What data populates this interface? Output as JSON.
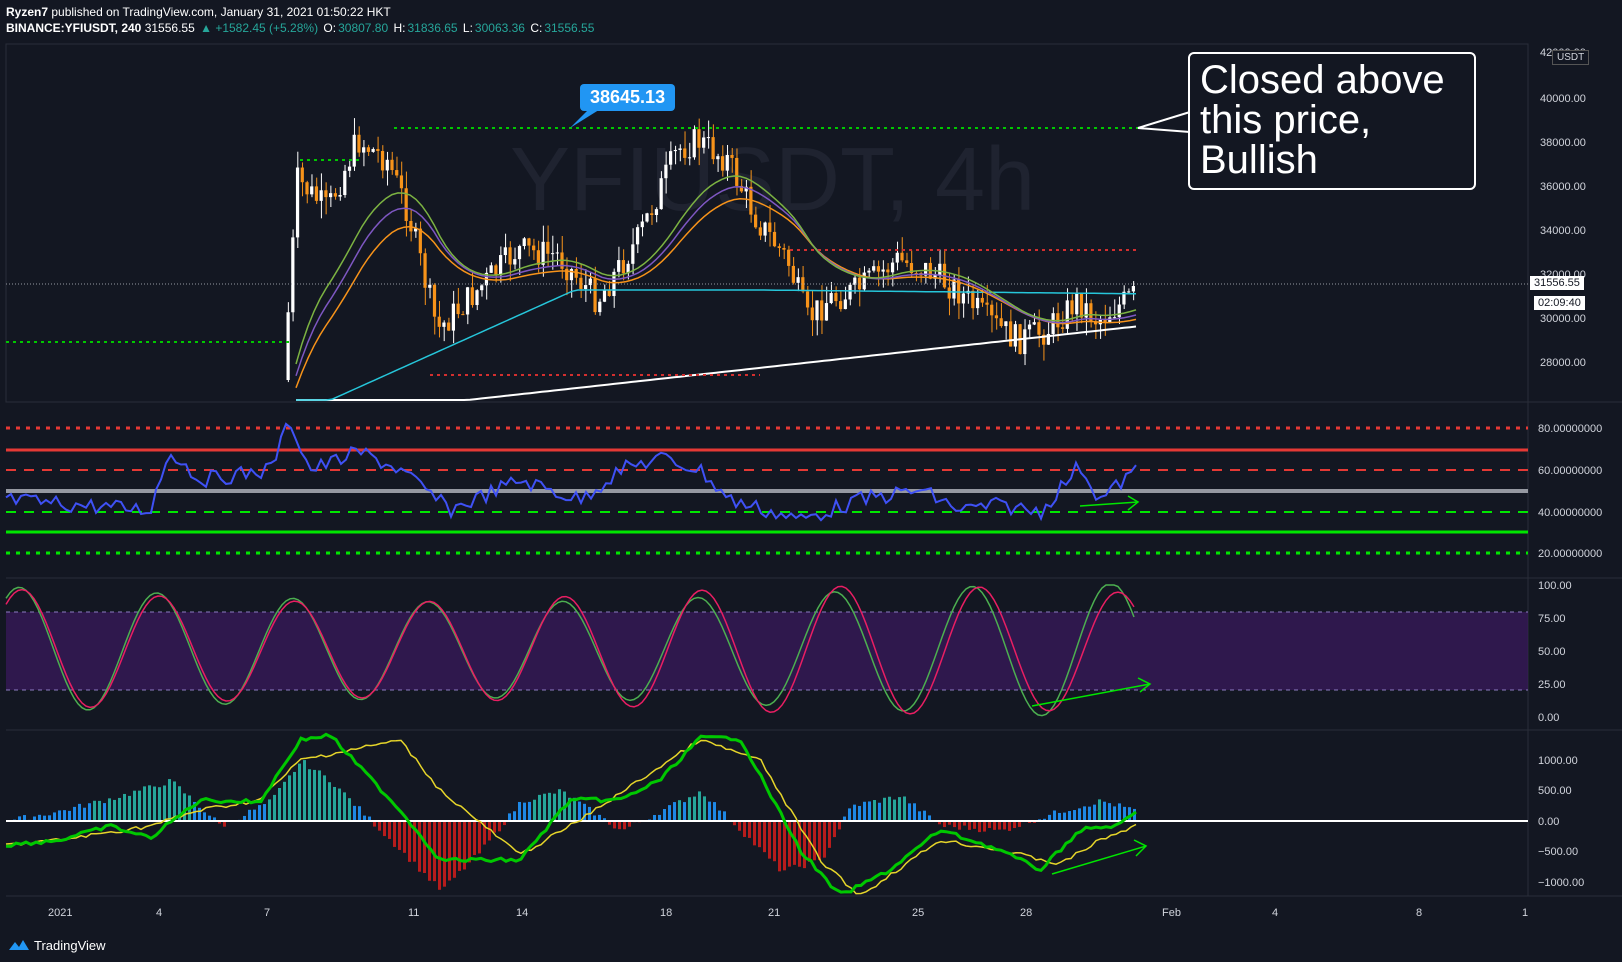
{
  "header": {
    "line1_user": "Ryzen7",
    "line1_rest": " published on TradingView.com, January 31, 2021 01:50:22 HKT",
    "symbol": "BINANCE:YFIUSDT, 240",
    "last": "31556.55",
    "change": "▲ +1582.45 (+5.28%)",
    "o_label": "O:",
    "o_val": "30807.80",
    "h_label": "H:",
    "h_val": "31836.65",
    "l_label": "L:",
    "l_val": "30063.36",
    "c_label": "C:",
    "c_val": "31556.55"
  },
  "watermark": {
    "symbol": "YFIUSDT, 4h"
  },
  "callout": {
    "text": "Closed above\nthis price,\nBullish"
  },
  "price_tag_top": "38645.13",
  "currency_badge": "USDT",
  "current_price": "31556.55",
  "countdown": "02:09:40",
  "price_axis": [
    "42000.00",
    "40000.00",
    "38000.00",
    "36000.00",
    "34000.00",
    "32000.00",
    "30000.00",
    "28000.00"
  ],
  "rsi_axis": [
    "80.00000000",
    "60.00000000",
    "40.00000000",
    "20.00000000"
  ],
  "stoch_axis": [
    "100.00",
    "75.00",
    "50.00",
    "25.00",
    "0.00"
  ],
  "macd_axis": [
    "1000.00",
    "500.00",
    "0.00",
    "−500.00",
    "−1000.00"
  ],
  "time_axis": [
    "2021",
    "4",
    "7",
    "11",
    "14",
    "18",
    "21",
    "25",
    "28",
    "Feb",
    "4",
    "8",
    "1"
  ],
  "footer": {
    "brand": "TradingView"
  },
  "colors": {
    "background": "#131722",
    "up": "#ffffff",
    "down": "#f7931a",
    "rsi": "#3f51f5",
    "stoch_k": "#4caf50",
    "stoch_d": "#e91e63",
    "macd_line": "#00c800",
    "signal": "#e6d52a",
    "hist_pos": "#1e88e5",
    "hist_neg": "#b71c1c"
  }
}
